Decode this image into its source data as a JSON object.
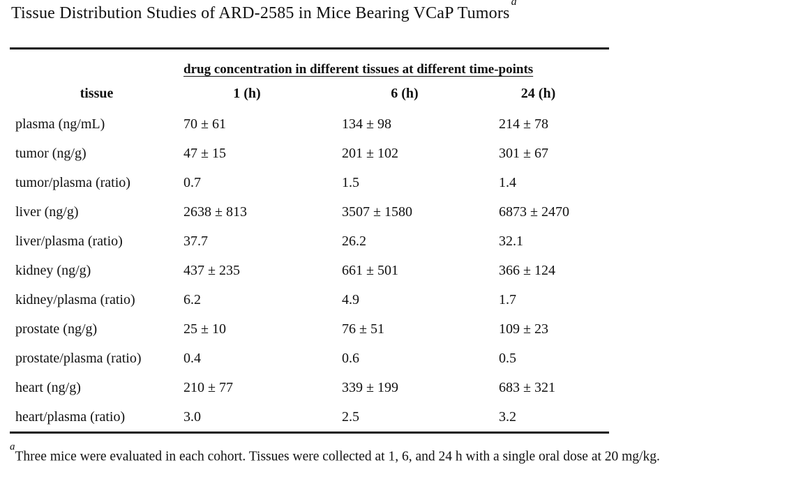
{
  "title": {
    "text": "Tissue Distribution Studies of ARD-2585 in Mice Bearing VCaP Tumors",
    "marker": "a"
  },
  "table": {
    "span_header": "drug concentration in different tissues at different time-points",
    "columns": [
      "tissue",
      "1 (h)",
      "6 (h)",
      "24 (h)"
    ],
    "rows": [
      {
        "tissue": "plasma (ng/mL)",
        "values": [
          "70 ± 61",
          "134 ± 98",
          "214 ± 78"
        ]
      },
      {
        "tissue": "tumor (ng/g)",
        "values": [
          "47 ± 15",
          "201 ± 102",
          "301 ± 67"
        ]
      },
      {
        "tissue": "tumor/plasma (ratio)",
        "values": [
          "0.7",
          "1.5",
          "1.4"
        ]
      },
      {
        "tissue": "liver (ng/g)",
        "values": [
          "2638 ± 813",
          "3507 ± 1580",
          "6873 ± 2470"
        ]
      },
      {
        "tissue": "liver/plasma (ratio)",
        "values": [
          "37.7",
          "26.2",
          "32.1"
        ]
      },
      {
        "tissue": "kidney (ng/g)",
        "values": [
          "437 ± 235",
          "661 ± 501",
          "366 ± 124"
        ]
      },
      {
        "tissue": "kidney/plasma (ratio)",
        "values": [
          "6.2",
          "4.9",
          "1.7"
        ]
      },
      {
        "tissue": "prostate (ng/g)",
        "values": [
          "25 ± 10",
          "76 ± 51",
          "109 ± 23"
        ]
      },
      {
        "tissue": "prostate/plasma (ratio)",
        "values": [
          "0.4",
          "0.6",
          "0.5"
        ]
      },
      {
        "tissue": "heart (ng/g)",
        "values": [
          "210 ± 77",
          "339 ± 199",
          "683 ± 321"
        ]
      },
      {
        "tissue": "heart/plasma (ratio)",
        "values": [
          "3.0",
          "2.5",
          "3.2"
        ]
      }
    ]
  },
  "footnote": {
    "marker": "a",
    "text": "Three mice were evaluated in each cohort. Tissues were collected at 1, 6, and 24 h with a single oral dose at 20 mg/kg."
  },
  "colors": {
    "text": "#111111",
    "background": "#ffffff",
    "rule": "#111111"
  }
}
